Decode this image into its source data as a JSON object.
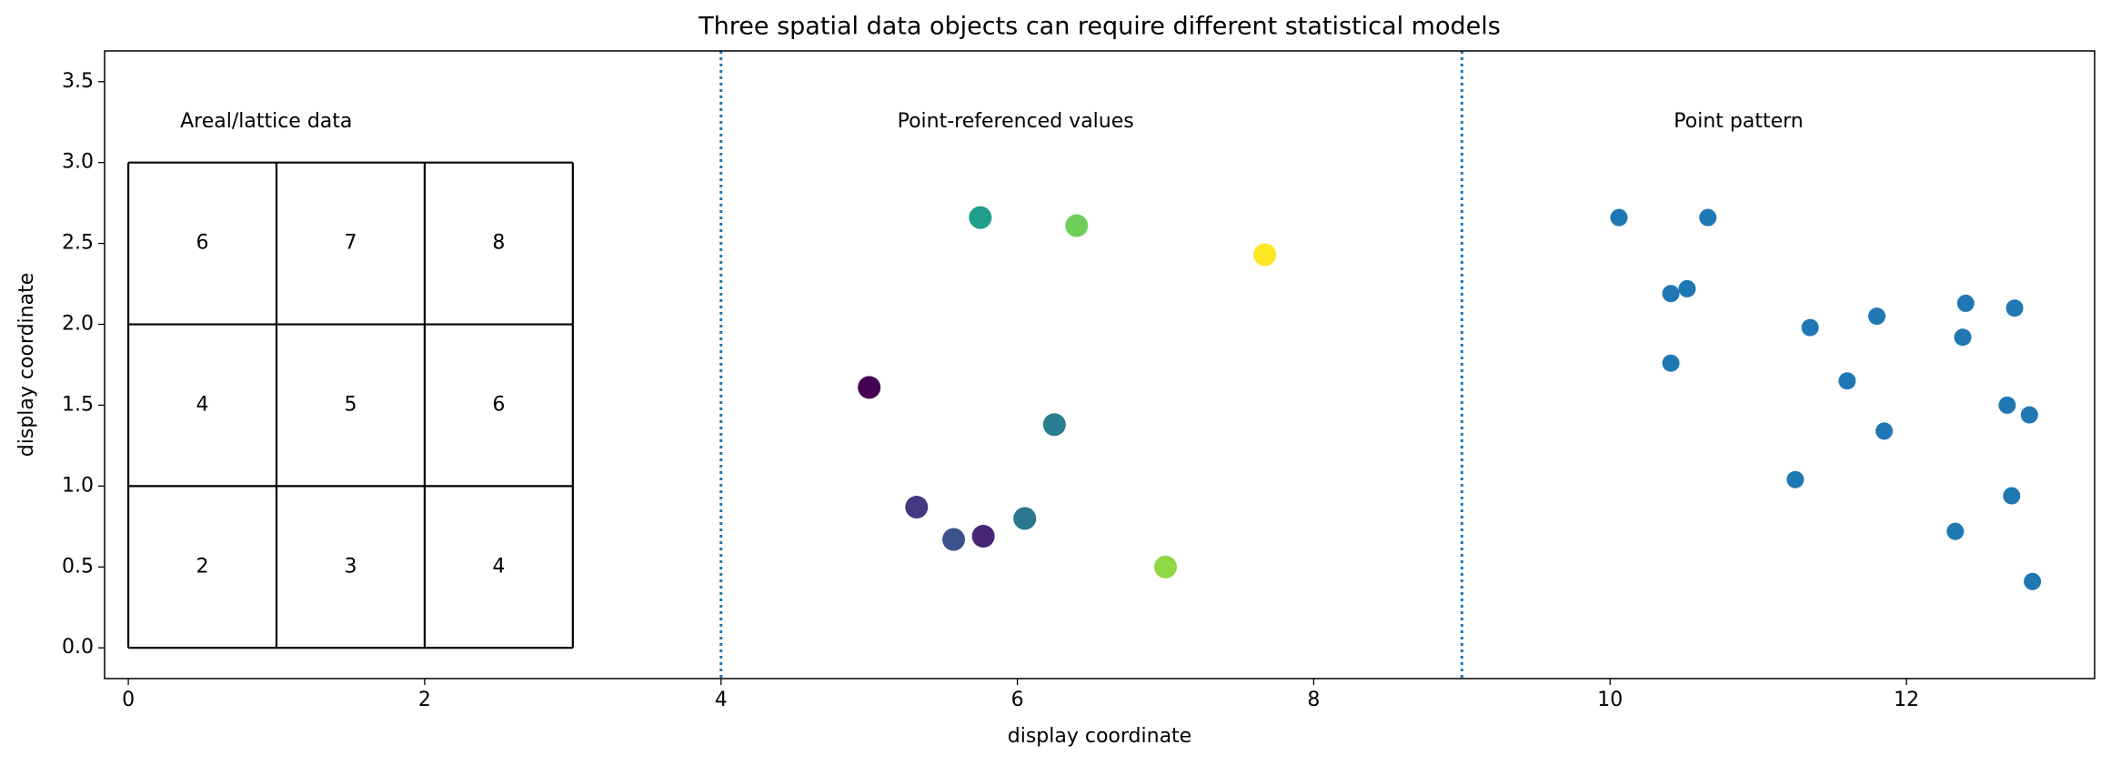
{
  "chart_data": {
    "type": "scatter",
    "title": "Three spatial data objects can require different statistical models",
    "xlabel": "display coordinate",
    "ylabel": "display coordinate",
    "xlim": [
      -0.16,
      13.27
    ],
    "ylim": [
      -0.19,
      3.69
    ],
    "xticks": [
      0,
      2,
      4,
      6,
      8,
      10,
      12
    ],
    "yticks": [
      {
        "value": 0,
        "label": "0.0"
      },
      0.5,
      {
        "value": 1,
        "label": "1.0"
      },
      1.5,
      {
        "value": 2,
        "label": "2.0"
      },
      2.5,
      {
        "value": 3,
        "label": "3.0"
      },
      3.5
    ],
    "lattice": {
      "x_edges": [
        0,
        1,
        2,
        3
      ],
      "y_edges": [
        0,
        1,
        2,
        3
      ],
      "values": [
        [
          2,
          3,
          4
        ],
        [
          4,
          5,
          6
        ],
        [
          6,
          7,
          8
        ]
      ]
    },
    "vlines": {
      "x": [
        4,
        9
      ],
      "color": "#1f77b4"
    },
    "annotations": [
      {
        "text": "Areal/lattice data",
        "x": 0.35,
        "y": 3.25
      },
      {
        "text": "Point-referenced values",
        "x": 5.19,
        "y": 3.25
      },
      {
        "text": "Point pattern",
        "x": 10.43,
        "y": 3.25
      }
    ],
    "series": [
      {
        "x": [
          5.0,
          5.32,
          5.57,
          5.77,
          5.75,
          6.05,
          6.25,
          6.4,
          7.0,
          7.67
        ],
        "y": [
          1.61,
          0.87,
          0.67,
          0.69,
          2.66,
          0.8,
          1.38,
          2.61,
          0.5,
          2.43
        ],
        "colors": [
          "#440154",
          "#453781",
          "#3b528b",
          "#482475",
          "#1f9e89",
          "#2a788e",
          "#287d8e",
          "#6ece58",
          "#8fd744",
          "#fde725"
        ],
        "size": 12.5
      },
      {
        "x": [
          10.06,
          10.66,
          10.41,
          10.52,
          10.41,
          11.35,
          11.8,
          11.6,
          11.85,
          11.25,
          12.4,
          12.38,
          12.73,
          12.68,
          12.83,
          12.71,
          12.33,
          12.85
        ],
        "y": [
          2.66,
          2.66,
          2.19,
          2.22,
          1.76,
          1.98,
          2.05,
          1.65,
          1.34,
          1.04,
          2.13,
          1.92,
          2.1,
          1.5,
          1.44,
          0.94,
          0.72,
          0.41
        ],
        "color": "#1f77b4",
        "size": 9.5
      }
    ]
  }
}
